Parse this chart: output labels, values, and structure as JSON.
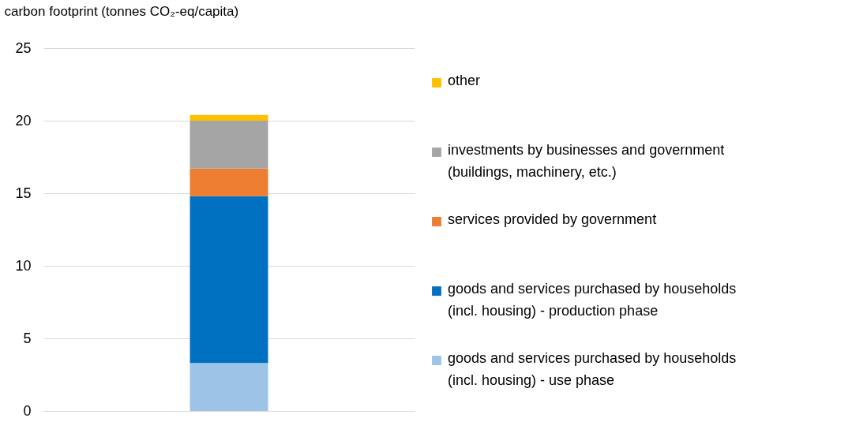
{
  "chart_data": {
    "type": "bar",
    "stacked": true,
    "ylabel": "carbon footprint (tonnes CO₂-eq/capita)",
    "categories": [
      null
    ],
    "series": [
      {
        "name": "goods and services purchased by households (incl. housing) - use phase",
        "color": "#9dc3e6",
        "values": [
          3.3
        ]
      },
      {
        "name": "goods and services purchased by households (incl. housing) - production phase",
        "color": "#0070c0",
        "values": [
          11.5
        ]
      },
      {
        "name": "services provided by government",
        "color": "#ed7d31",
        "values": [
          1.9
        ]
      },
      {
        "name": "investments by businesses and government (buildings, machinery, etc.)",
        "color": "#a5a5a5",
        "values": [
          3.3
        ]
      },
      {
        "name": "other",
        "color": "#ffc000",
        "values": [
          0.4
        ]
      }
    ],
    "ylim": [
      0,
      25
    ],
    "yticks": [
      0,
      5,
      10,
      15,
      20,
      25
    ],
    "grid": "y",
    "legend": "right",
    "tick_labels": "y"
  }
}
